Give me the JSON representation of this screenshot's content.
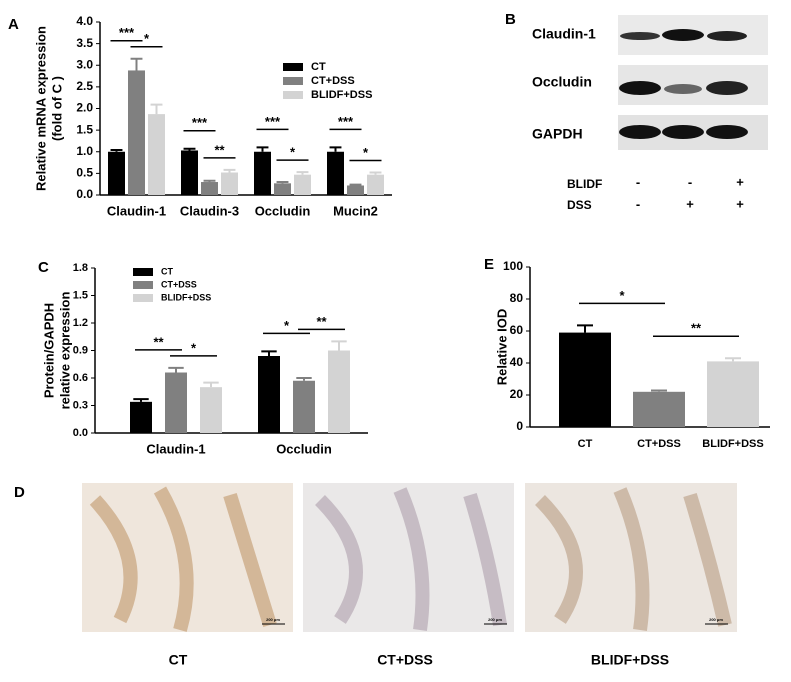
{
  "chart_data": [
    {
      "type": "bar",
      "label": "A",
      "ylabel": [
        "Relative mRNA expression",
        "(fold of C )"
      ],
      "categories": [
        "Claudin-1",
        "Claudin-3",
        "Occludin",
        "Mucin2"
      ],
      "series": [
        {
          "name": "CT",
          "color": "#000000",
          "values": [
            1.0,
            1.03,
            1.0,
            1.0
          ],
          "errors": [
            0.04,
            0.04,
            0.1,
            0.1
          ]
        },
        {
          "name": "CT+DSS",
          "color": "#808080",
          "values": [
            2.88,
            0.3,
            0.27,
            0.22
          ],
          "errors": [
            0.27,
            0.03,
            0.03,
            0.02
          ]
        },
        {
          "name": "BLIDF+DSS",
          "color": "#d3d3d3",
          "values": [
            1.87,
            0.52,
            0.47,
            0.47
          ],
          "errors": [
            0.22,
            0.06,
            0.06,
            0.05
          ]
        }
      ],
      "ylim": [
        0,
        4
      ],
      "yticks": [
        {
          "value": 0,
          "label": "0.0"
        },
        0.5,
        {
          "value": 1,
          "label": "1.0"
        },
        1.5,
        {
          "value": 2,
          "label": "2.0"
        },
        2.5,
        {
          "value": 3,
          "label": "3.0"
        },
        3.5,
        {
          "value": 4,
          "label": "4.0"
        }
      ],
      "annotations": [
        {
          "text": "***",
          "category": "Claudin-1",
          "pair": [
            "CT",
            "CT+DSS"
          ]
        },
        {
          "text": "*",
          "category": "Claudin-1",
          "pair": [
            "CT+DSS",
            "BLIDF+DSS"
          ]
        },
        {
          "text": "***",
          "category": "Claudin-3",
          "pair": [
            "CT",
            "CT+DSS"
          ]
        },
        {
          "text": "**",
          "category": "Claudin-3",
          "pair": [
            "CT+DSS",
            "BLIDF+DSS"
          ]
        },
        {
          "text": "***",
          "category": "Occludin",
          "pair": [
            "CT",
            "CT+DSS"
          ]
        },
        {
          "text": "*",
          "category": "Occludin",
          "pair": [
            "CT+DSS",
            "BLIDF+DSS"
          ]
        },
        {
          "text": "***",
          "category": "Mucin2",
          "pair": [
            "CT",
            "CT+DSS"
          ]
        },
        {
          "text": "*",
          "category": "Mucin2",
          "pair": [
            "CT+DSS",
            "BLIDF+DSS"
          ]
        }
      ]
    },
    {
      "type": "bar",
      "label": "C",
      "ylabel": [
        "Protein/GAPDH",
        "relative expression"
      ],
      "categories": [
        "Claudin-1",
        "Occludin"
      ],
      "series": [
        {
          "name": "CT",
          "color": "#000000",
          "values": [
            0.34,
            0.84
          ],
          "errors": [
            0.03,
            0.05
          ]
        },
        {
          "name": "CT+DSS",
          "color": "#808080",
          "values": [
            0.66,
            0.57
          ],
          "errors": [
            0.05,
            0.03
          ]
        },
        {
          "name": "BLIDF+DSS",
          "color": "#d3d3d3",
          "values": [
            0.5,
            0.9
          ],
          "errors": [
            0.05,
            0.1
          ]
        }
      ],
      "ylim": [
        0,
        1.8
      ],
      "yticks": [
        {
          "value": 0,
          "label": "0.0"
        },
        0.3,
        0.6,
        0.9,
        1.2,
        1.5,
        1.8
      ],
      "annotations": [
        {
          "text": "**",
          "category": "Claudin-1",
          "pair": [
            "CT",
            "CT+DSS"
          ]
        },
        {
          "text": "*",
          "category": "Claudin-1",
          "pair": [
            "CT+DSS",
            "BLIDF+DSS"
          ]
        },
        {
          "text": "*",
          "category": "Occludin",
          "pair": [
            "CT",
            "CT+DSS"
          ]
        },
        {
          "text": "**",
          "category": "Occludin",
          "pair": [
            "CT+DSS",
            "BLIDF+DSS"
          ]
        }
      ]
    },
    {
      "type": "bar",
      "label": "E",
      "ylabel": [
        "Relative IOD"
      ],
      "categories": [
        "CT",
        "CT+DSS",
        "BLIDF+DSS"
      ],
      "values": [
        59,
        22,
        41
      ],
      "errors": [
        4.5,
        0.8,
        2
      ],
      "colors": [
        "#000000",
        "#808080",
        "#d3d3d3"
      ],
      "ylim": [
        0,
        100
      ],
      "yticks": [
        0,
        20,
        40,
        60,
        80,
        100
      ],
      "annotations": [
        {
          "text": "*",
          "category": [
            "CT",
            "CT+DSS"
          ]
        },
        {
          "text": "**",
          "category": [
            "CT+DSS",
            "BLIDF+DSS"
          ]
        }
      ]
    }
  ],
  "blot": {
    "label": "B",
    "rows": [
      "Claudin-1",
      "Occludin",
      "GAPDH"
    ],
    "treatments": [
      {
        "name": "BLIDF",
        "signs": [
          "-",
          "-",
          "+"
        ]
      },
      {
        "name": "DSS",
        "signs": [
          "-",
          "+",
          "+"
        ]
      }
    ]
  },
  "histology": {
    "label": "D",
    "captions": [
      "CT",
      "CT+DSS",
      "BLIDF+DSS"
    ],
    "scale": "200 μm"
  }
}
